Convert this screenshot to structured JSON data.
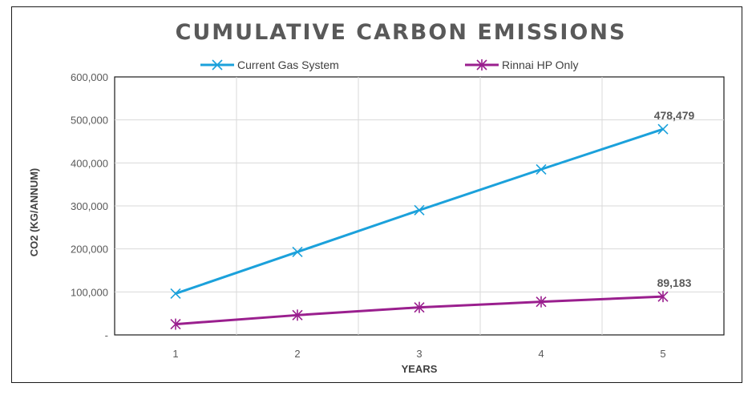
{
  "chart_data": {
    "type": "line",
    "title": "CUMULATIVE CARBON EMISSIONS",
    "xlabel": "YEARS",
    "ylabel": "CO2 (KG/ANNUM)",
    "categories": [
      "1",
      "2",
      "3",
      "4",
      "5"
    ],
    "ylim": [
      0,
      600000
    ],
    "yticks": [
      0,
      100000,
      200000,
      300000,
      400000,
      500000,
      600000
    ],
    "ytick_labels": [
      "-",
      "100,000",
      "200,000",
      "300,000",
      "400,000",
      "500,000",
      "600,000"
    ],
    "grid": true,
    "legend_position": "top",
    "series": [
      {
        "name": "Current Gas System",
        "values": [
          96000,
          193000,
          290000,
          385000,
          478479
        ],
        "color": "#1BA1DB",
        "marker": "x",
        "end_label": "478,479"
      },
      {
        "name": "Rinnai HP Only",
        "values": [
          25000,
          46000,
          64000,
          77000,
          89183
        ],
        "color": "#9A1F8E",
        "marker": "asterisk",
        "end_label": "89,183"
      }
    ]
  }
}
